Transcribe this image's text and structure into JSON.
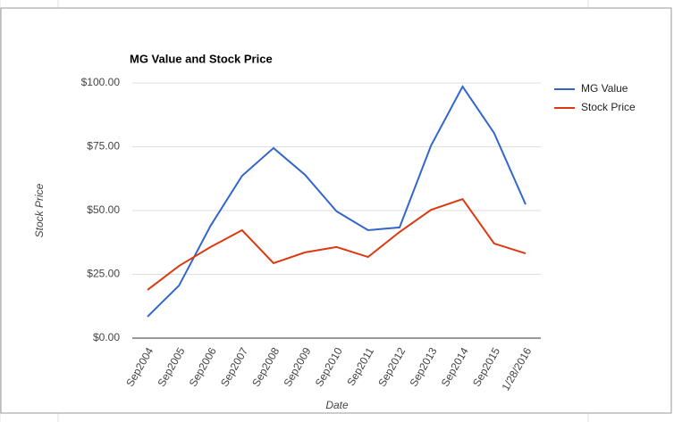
{
  "chart_data": {
    "type": "line",
    "title": "MG Value and Stock Price",
    "x_label": "Date",
    "y_label": "Stock Price",
    "categories": [
      "Sep2004",
      "Sep2005",
      "Sep2006",
      "Sep2007",
      "Sep2008",
      "Sep2009",
      "Sep2010",
      "Sep2011",
      "Sep2012",
      "Sep2013",
      "Sep2014",
      "Sep2015",
      "1/28/2016"
    ],
    "series": [
      {
        "name": "MG Value",
        "color": "#3366cc",
        "values": [
          8.4,
          20.6,
          44,
          63.6,
          74.5,
          64,
          49.7,
          42.3,
          43.4,
          75.5,
          98.6,
          80.4,
          52.4
        ]
      },
      {
        "name": "Stock Price",
        "color": "#dc3912",
        "values": [
          18.9,
          28.3,
          35.7,
          42.3,
          29.4,
          33.6,
          35.7,
          31.8,
          41.6,
          50.3,
          54.5,
          37.1,
          33.2
        ]
      }
    ],
    "ylim": [
      0,
      100
    ],
    "yticks": [
      {
        "value": 0,
        "label": "$0.00"
      },
      {
        "value": 25,
        "label": "$25.00"
      },
      {
        "value": 50,
        "label": "$50.00"
      },
      {
        "value": 75,
        "label": "$75.00"
      },
      {
        "value": 100,
        "label": "$100.00"
      }
    ],
    "grid": true,
    "legend": "right"
  }
}
